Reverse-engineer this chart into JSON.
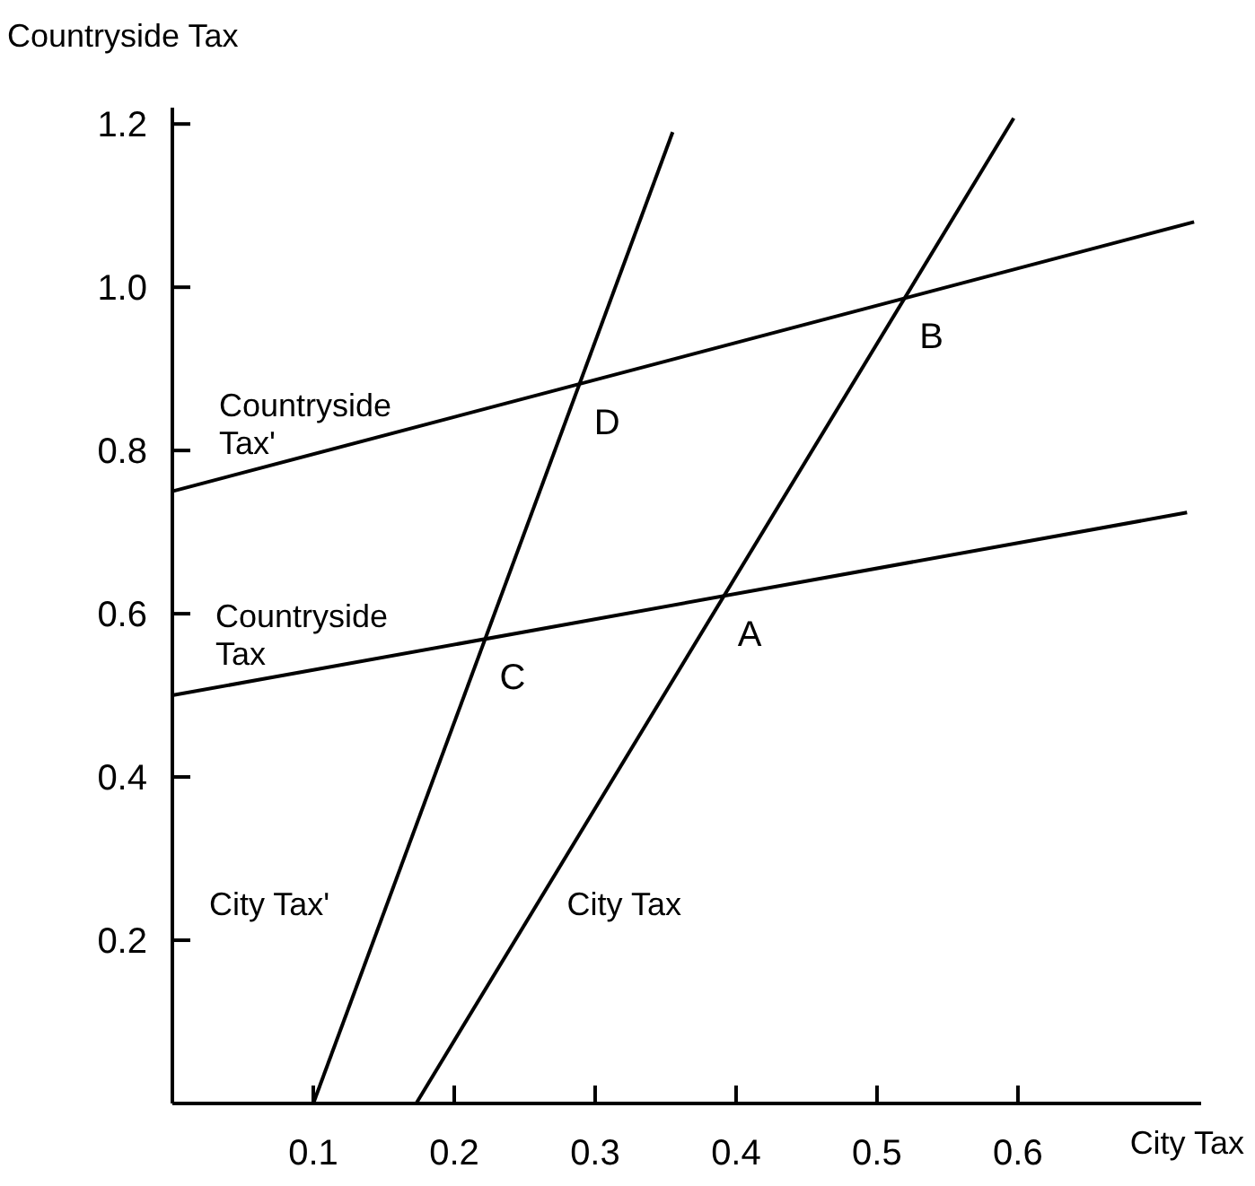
{
  "chart_data": {
    "type": "line",
    "xlabel": "City Tax",
    "ylabel": "Countryside Tax",
    "xlim": [
      0,
      0.73
    ],
    "ylim": [
      0,
      1.22
    ],
    "xticks": [
      0.1,
      0.2,
      0.3,
      0.4,
      0.5,
      0.6
    ],
    "yticks": [
      0.2,
      0.4,
      0.6,
      0.8,
      {
        "value": 1.0,
        "label": "1.0"
      },
      1.2
    ],
    "grid": false,
    "marker": "none",
    "line_style": "solid",
    "series": [
      {
        "name": "Countryside Tax'",
        "color": "#000000",
        "x": [
          0,
          0.725
        ],
        "values": [
          0.75,
          1.08
        ]
      },
      {
        "name": "Countryside Tax",
        "color": "#000000",
        "x": [
          0,
          0.72
        ],
        "values": [
          0.5,
          0.724
        ]
      },
      {
        "name": "City Tax'",
        "color": "#000000",
        "x": [
          0.1,
          0.355
        ],
        "values": [
          0,
          1.19
        ]
      },
      {
        "name": "City Tax",
        "color": "#000000",
        "x": [
          0.173,
          0.597
        ],
        "values": [
          0,
          1.207
        ]
      }
    ],
    "annotations": [
      {
        "text": "A",
        "x": 0.391,
        "y": 0.622
      },
      {
        "text": "B",
        "x": 0.52,
        "y": 0.987
      },
      {
        "text": "C",
        "x": 0.222,
        "y": 0.569
      },
      {
        "text": "D",
        "x": 0.289,
        "y": 0.881
      }
    ]
  }
}
